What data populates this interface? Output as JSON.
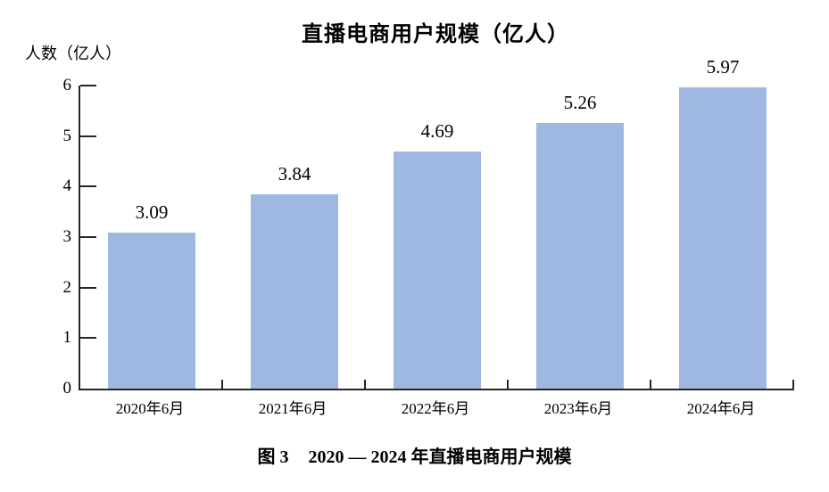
{
  "page": {
    "background_color": "#ffffff",
    "text_color": "#000000"
  },
  "chart_data": {
    "type": "bar",
    "title": "直播电商用户规模（亿人）",
    "y_axis_title": "人数（亿人）",
    "xlabel": "",
    "ylabel": "人数（亿人）",
    "categories": [
      "2020年6月",
      "2021年6月",
      "2022年6月",
      "2023年6月",
      "2024年6月"
    ],
    "values": [
      3.09,
      3.84,
      4.69,
      5.26,
      5.97
    ],
    "value_labels": [
      "3.09",
      "3.84",
      "4.69",
      "5.26",
      "5.97"
    ],
    "y_ticks": [
      0,
      1,
      2,
      3,
      4,
      5,
      6
    ],
    "ylim": [
      0,
      6
    ],
    "grid": false,
    "legend": false,
    "bar_color": "#9fb8e2",
    "axis_color": "#262626"
  },
  "caption": {
    "figure_label": "图 3",
    "text": "2020 — 2024 年直播电商用户规模"
  }
}
